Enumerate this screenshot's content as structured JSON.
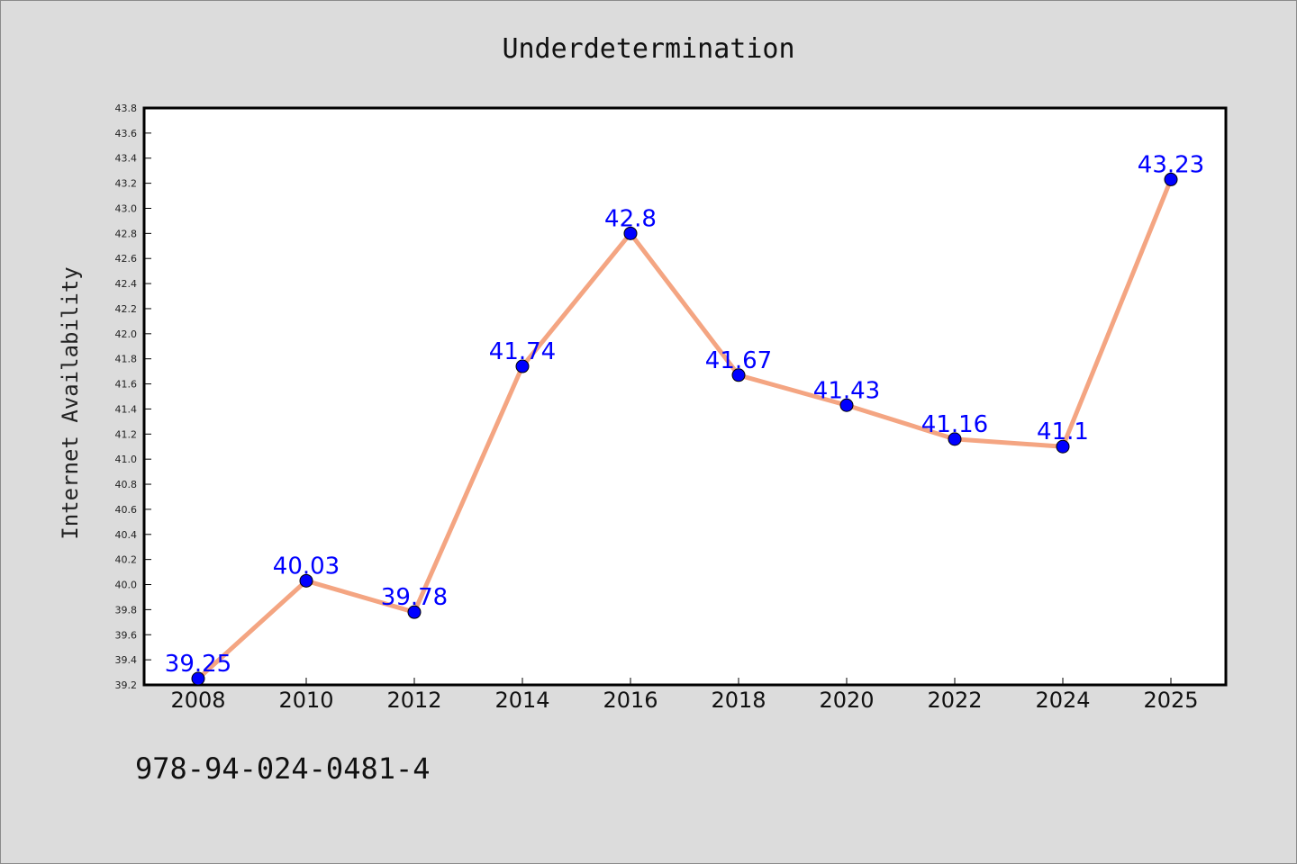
{
  "chart_data": {
    "type": "line",
    "title": "Underdetermination",
    "xlabel": "",
    "ylabel": "Internet Availability",
    "categories": [
      "2008",
      "2010",
      "2012",
      "2014",
      "2016",
      "2018",
      "2020",
      "2022",
      "2024",
      "2025"
    ],
    "series": [
      {
        "values": [
          39.25,
          40.03,
          39.78,
          41.74,
          42.8,
          41.67,
          41.43,
          41.16,
          41.1,
          43.23
        ],
        "data_labels": [
          "39.25",
          "40.03",
          "39.78",
          "41.74",
          "42.8",
          "41.67",
          "41.43",
          "41.16",
          "41.1",
          "43.23"
        ],
        "line_color": "#f4a582",
        "marker_color": "#0000ff"
      }
    ],
    "ylim": [
      39.2,
      43.8
    ],
    "yticks": [
      "39.2",
      "39.4",
      "39.6",
      "39.8",
      "40.0",
      "40.2",
      "40.4",
      "40.6",
      "40.8",
      "41.0",
      "41.2",
      "41.4",
      "41.6",
      "41.8",
      "42.0",
      "42.2",
      "42.4",
      "42.6",
      "42.8",
      "43.0",
      "43.2",
      "43.4",
      "43.6",
      "43.8"
    ],
    "grid": false,
    "legend": "none"
  },
  "footer": {
    "isbn": "978-94-024-0481-4"
  }
}
